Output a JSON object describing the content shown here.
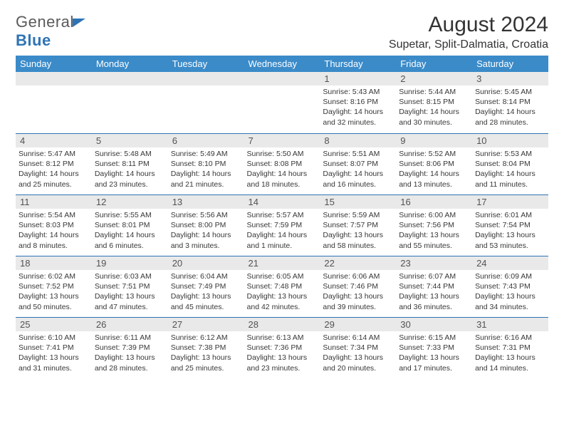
{
  "logo": {
    "word1": "General",
    "word2": "Blue"
  },
  "title": "August 2024",
  "location": "Supetar, Split-Dalmatia, Croatia",
  "colors": {
    "header_bg": "#3b8bc9",
    "header_fg": "#ffffff",
    "daynum_bg": "#e9e9e9",
    "row_divider": "#2e74b5",
    "text": "#333333",
    "logo_gray": "#5a5a5a",
    "logo_blue": "#2e74b5"
  },
  "weekdays": [
    "Sunday",
    "Monday",
    "Tuesday",
    "Wednesday",
    "Thursday",
    "Friday",
    "Saturday"
  ],
  "weeks": [
    [
      null,
      null,
      null,
      null,
      {
        "d": "1",
        "sunrise": "Sunrise: 5:43 AM",
        "sunset": "Sunset: 8:16 PM",
        "daylight": "Daylight: 14 hours and 32 minutes."
      },
      {
        "d": "2",
        "sunrise": "Sunrise: 5:44 AM",
        "sunset": "Sunset: 8:15 PM",
        "daylight": "Daylight: 14 hours and 30 minutes."
      },
      {
        "d": "3",
        "sunrise": "Sunrise: 5:45 AM",
        "sunset": "Sunset: 8:14 PM",
        "daylight": "Daylight: 14 hours and 28 minutes."
      }
    ],
    [
      {
        "d": "4",
        "sunrise": "Sunrise: 5:47 AM",
        "sunset": "Sunset: 8:12 PM",
        "daylight": "Daylight: 14 hours and 25 minutes."
      },
      {
        "d": "5",
        "sunrise": "Sunrise: 5:48 AM",
        "sunset": "Sunset: 8:11 PM",
        "daylight": "Daylight: 14 hours and 23 minutes."
      },
      {
        "d": "6",
        "sunrise": "Sunrise: 5:49 AM",
        "sunset": "Sunset: 8:10 PM",
        "daylight": "Daylight: 14 hours and 21 minutes."
      },
      {
        "d": "7",
        "sunrise": "Sunrise: 5:50 AM",
        "sunset": "Sunset: 8:08 PM",
        "daylight": "Daylight: 14 hours and 18 minutes."
      },
      {
        "d": "8",
        "sunrise": "Sunrise: 5:51 AM",
        "sunset": "Sunset: 8:07 PM",
        "daylight": "Daylight: 14 hours and 16 minutes."
      },
      {
        "d": "9",
        "sunrise": "Sunrise: 5:52 AM",
        "sunset": "Sunset: 8:06 PM",
        "daylight": "Daylight: 14 hours and 13 minutes."
      },
      {
        "d": "10",
        "sunrise": "Sunrise: 5:53 AM",
        "sunset": "Sunset: 8:04 PM",
        "daylight": "Daylight: 14 hours and 11 minutes."
      }
    ],
    [
      {
        "d": "11",
        "sunrise": "Sunrise: 5:54 AM",
        "sunset": "Sunset: 8:03 PM",
        "daylight": "Daylight: 14 hours and 8 minutes."
      },
      {
        "d": "12",
        "sunrise": "Sunrise: 5:55 AM",
        "sunset": "Sunset: 8:01 PM",
        "daylight": "Daylight: 14 hours and 6 minutes."
      },
      {
        "d": "13",
        "sunrise": "Sunrise: 5:56 AM",
        "sunset": "Sunset: 8:00 PM",
        "daylight": "Daylight: 14 hours and 3 minutes."
      },
      {
        "d": "14",
        "sunrise": "Sunrise: 5:57 AM",
        "sunset": "Sunset: 7:59 PM",
        "daylight": "Daylight: 14 hours and 1 minute."
      },
      {
        "d": "15",
        "sunrise": "Sunrise: 5:59 AM",
        "sunset": "Sunset: 7:57 PM",
        "daylight": "Daylight: 13 hours and 58 minutes."
      },
      {
        "d": "16",
        "sunrise": "Sunrise: 6:00 AM",
        "sunset": "Sunset: 7:56 PM",
        "daylight": "Daylight: 13 hours and 55 minutes."
      },
      {
        "d": "17",
        "sunrise": "Sunrise: 6:01 AM",
        "sunset": "Sunset: 7:54 PM",
        "daylight": "Daylight: 13 hours and 53 minutes."
      }
    ],
    [
      {
        "d": "18",
        "sunrise": "Sunrise: 6:02 AM",
        "sunset": "Sunset: 7:52 PM",
        "daylight": "Daylight: 13 hours and 50 minutes."
      },
      {
        "d": "19",
        "sunrise": "Sunrise: 6:03 AM",
        "sunset": "Sunset: 7:51 PM",
        "daylight": "Daylight: 13 hours and 47 minutes."
      },
      {
        "d": "20",
        "sunrise": "Sunrise: 6:04 AM",
        "sunset": "Sunset: 7:49 PM",
        "daylight": "Daylight: 13 hours and 45 minutes."
      },
      {
        "d": "21",
        "sunrise": "Sunrise: 6:05 AM",
        "sunset": "Sunset: 7:48 PM",
        "daylight": "Daylight: 13 hours and 42 minutes."
      },
      {
        "d": "22",
        "sunrise": "Sunrise: 6:06 AM",
        "sunset": "Sunset: 7:46 PM",
        "daylight": "Daylight: 13 hours and 39 minutes."
      },
      {
        "d": "23",
        "sunrise": "Sunrise: 6:07 AM",
        "sunset": "Sunset: 7:44 PM",
        "daylight": "Daylight: 13 hours and 36 minutes."
      },
      {
        "d": "24",
        "sunrise": "Sunrise: 6:09 AM",
        "sunset": "Sunset: 7:43 PM",
        "daylight": "Daylight: 13 hours and 34 minutes."
      }
    ],
    [
      {
        "d": "25",
        "sunrise": "Sunrise: 6:10 AM",
        "sunset": "Sunset: 7:41 PM",
        "daylight": "Daylight: 13 hours and 31 minutes."
      },
      {
        "d": "26",
        "sunrise": "Sunrise: 6:11 AM",
        "sunset": "Sunset: 7:39 PM",
        "daylight": "Daylight: 13 hours and 28 minutes."
      },
      {
        "d": "27",
        "sunrise": "Sunrise: 6:12 AM",
        "sunset": "Sunset: 7:38 PM",
        "daylight": "Daylight: 13 hours and 25 minutes."
      },
      {
        "d": "28",
        "sunrise": "Sunrise: 6:13 AM",
        "sunset": "Sunset: 7:36 PM",
        "daylight": "Daylight: 13 hours and 23 minutes."
      },
      {
        "d": "29",
        "sunrise": "Sunrise: 6:14 AM",
        "sunset": "Sunset: 7:34 PM",
        "daylight": "Daylight: 13 hours and 20 minutes."
      },
      {
        "d": "30",
        "sunrise": "Sunrise: 6:15 AM",
        "sunset": "Sunset: 7:33 PM",
        "daylight": "Daylight: 13 hours and 17 minutes."
      },
      {
        "d": "31",
        "sunrise": "Sunrise: 6:16 AM",
        "sunset": "Sunset: 7:31 PM",
        "daylight": "Daylight: 13 hours and 14 minutes."
      }
    ]
  ]
}
